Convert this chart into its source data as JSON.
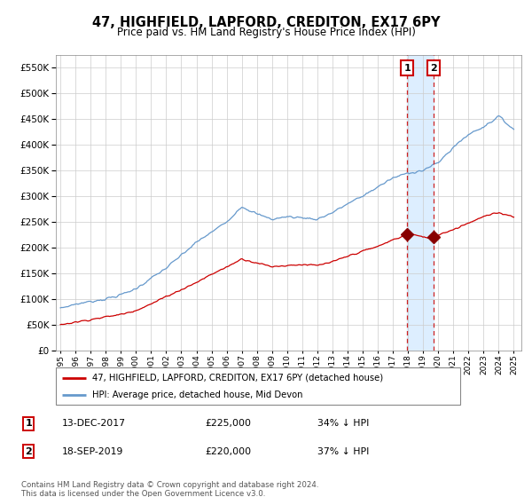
{
  "title": "47, HIGHFIELD, LAPFORD, CREDITON, EX17 6PY",
  "subtitle": "Price paid vs. HM Land Registry's House Price Index (HPI)",
  "legend_label_red": "47, HIGHFIELD, LAPFORD, CREDITON, EX17 6PY (detached house)",
  "legend_label_blue": "HPI: Average price, detached house, Mid Devon",
  "sale1_date": "13-DEC-2017",
  "sale1_price": "£225,000",
  "sale1_pct": "34% ↓ HPI",
  "sale2_date": "18-SEP-2019",
  "sale2_price": "£220,000",
  "sale2_pct": "37% ↓ HPI",
  "footer": "Contains HM Land Registry data © Crown copyright and database right 2024.\nThis data is licensed under the Open Government Licence v3.0.",
  "red_color": "#cc0000",
  "blue_color": "#6699cc",
  "dashed_line_color": "#cc2222",
  "highlight_box_color": "#ddeeff",
  "ylim": [
    0,
    575000
  ],
  "yticks": [
    0,
    50000,
    100000,
    150000,
    200000,
    250000,
    300000,
    350000,
    400000,
    450000,
    500000,
    550000
  ],
  "xlim_start": 1994.7,
  "xlim_end": 2025.5,
  "sale1_x": 2017.96,
  "sale1_y": 225000,
  "sale2_x": 2019.72,
  "sale2_y": 220000,
  "blue_base_years": [
    1995,
    1996,
    1997,
    1998,
    1999,
    2000,
    2001,
    2002,
    2003,
    2004,
    2005,
    2006,
    2007,
    2008,
    2009,
    2010,
    2011,
    2012,
    2013,
    2014,
    2015,
    2016,
    2017,
    2018,
    2019,
    2020,
    2021,
    2022,
    2023,
    2024,
    2025
  ],
  "blue_base_vals": [
    82000,
    90000,
    95000,
    100000,
    108000,
    120000,
    140000,
    160000,
    185000,
    210000,
    230000,
    250000,
    280000,
    265000,
    255000,
    260000,
    258000,
    255000,
    268000,
    285000,
    300000,
    318000,
    335000,
    345000,
    350000,
    365000,
    395000,
    420000,
    435000,
    455000,
    430000
  ],
  "red_base_years": [
    1995,
    1996,
    1997,
    1998,
    1999,
    2000,
    2001,
    2002,
    2003,
    2004,
    2005,
    2006,
    2007,
    2008,
    2009,
    2010,
    2011,
    2012,
    2013,
    2014,
    2015,
    2016,
    2017,
    2017.96,
    2018,
    2019,
    2019.72,
    2020,
    2021,
    2022,
    2023,
    2024,
    2025
  ],
  "red_base_vals": [
    50000,
    55000,
    60000,
    65000,
    70000,
    78000,
    90000,
    105000,
    118000,
    132000,
    148000,
    162000,
    178000,
    170000,
    163000,
    165000,
    167000,
    165000,
    172000,
    183000,
    193000,
    202000,
    215000,
    225000,
    228000,
    220000,
    220000,
    225000,
    235000,
    248000,
    260000,
    268000,
    260000
  ]
}
